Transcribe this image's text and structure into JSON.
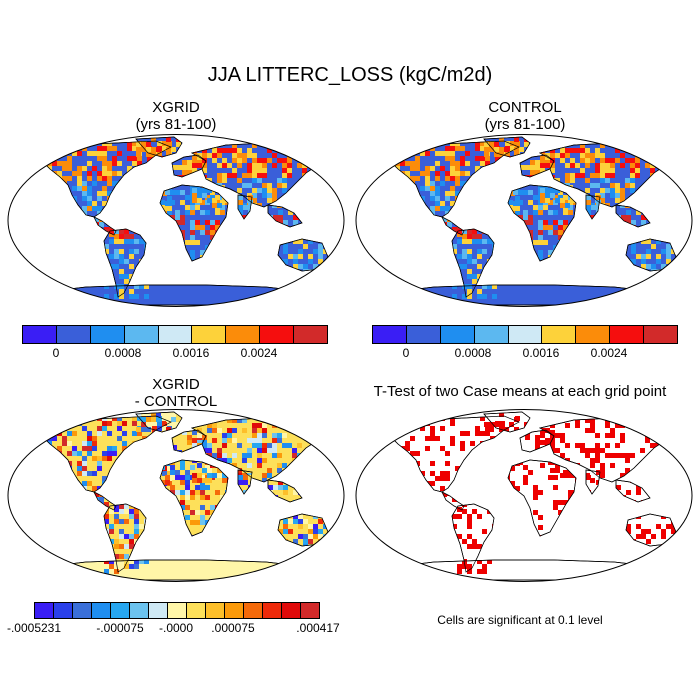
{
  "title": "JJA LITTERC_LOSS (kgC/m2d)",
  "panels": {
    "xgrid": {
      "title": "XGRID",
      "subtitle": "(yrs 81-100)"
    },
    "control": {
      "title": "CONTROL",
      "subtitle": "(yrs 81-100)"
    },
    "diff": {
      "title": "XGRID",
      "subtitle": "- CONTROL"
    },
    "ttest": {
      "title": "T-Test of two Case means at each grid point"
    }
  },
  "colorbar_main": {
    "colors": [
      "#3a1ef5",
      "#3a5fd9",
      "#1f8ef0",
      "#5cb8f0",
      "#cfe9f5",
      "#fdd23a",
      "#fb8c0a",
      "#f50e0e",
      "#d22a2a"
    ],
    "labels": [
      "0",
      "0.0008",
      "0.0016",
      "0.0024"
    ]
  },
  "colorbar_diff": {
    "colors": [
      "#3a1ef5",
      "#2a40ea",
      "#3a6fd9",
      "#1f8ef0",
      "#27a6f0",
      "#6cc3ef",
      "#cfe9f5",
      "#fff6a8",
      "#fde05a",
      "#fdbf2a",
      "#fb9a0a",
      "#f56a0a",
      "#ee2a0a",
      "#e00a0a",
      "#d22a2a"
    ],
    "labels": [
      "-.0005231",
      "-.000075",
      "-.0000",
      ".000075",
      ".000417"
    ]
  },
  "ttest_note": "Cells are significant at 0.1 level"
}
